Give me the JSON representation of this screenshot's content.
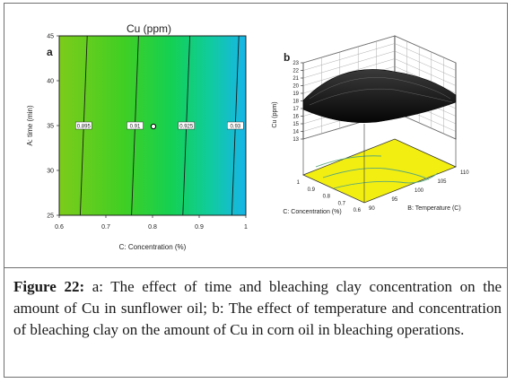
{
  "chart_data": [
    {
      "type": "contour",
      "panel_label": "a",
      "title": "Cu (ppm)",
      "xlabel": "C: Concentration (%)",
      "ylabel": "A: time (min)",
      "xlim": [
        0.6,
        1.0
      ],
      "ylim": [
        25,
        45
      ],
      "x_ticks": [
        "0.6",
        "0.7",
        "0.8",
        "0.9",
        "1"
      ],
      "y_ticks": [
        "25",
        "30",
        "35",
        "40",
        "45"
      ],
      "contours": [
        {
          "label": "0.895",
          "x_bottom": 0.645,
          "x_top": 0.66
        },
        {
          "label": "0.91",
          "x_bottom": 0.755,
          "x_top": 0.77
        },
        {
          "label": "0.925",
          "x_bottom": 0.865,
          "x_top": 0.88
        },
        {
          "label": "0.93",
          "x_bottom": 0.97,
          "x_top": 0.985
        }
      ],
      "label_y": 35,
      "design_point": {
        "x": 0.8,
        "y": 35
      }
    },
    {
      "type": "surface3d",
      "panel_label": "b",
      "zlabel": "Cu (ppm)",
      "xlabel": "C: Concentration (%)",
      "ylabel": "B: Temperature (C)",
      "zlim": [
        13,
        23
      ],
      "z_ticks": [
        "13",
        "14",
        "15",
        "16",
        "17",
        "18",
        "19",
        "20",
        "21",
        "22",
        "23"
      ],
      "x_ticks": [
        "0.6",
        "0.7",
        "0.8",
        "0.9",
        "1"
      ],
      "y_ticks": [
        "90",
        "95",
        "100",
        "105",
        "110"
      ],
      "surface_range": [
        17,
        20
      ]
    }
  ],
  "caption": {
    "label": "Figure 22:",
    "text": "a: The effect of time and bleaching clay concentration on the amount of Cu in sunflower oil; b: The effect of temperature and concentration of bleaching clay on the amount of Cu in corn oil in bleaching operations."
  }
}
